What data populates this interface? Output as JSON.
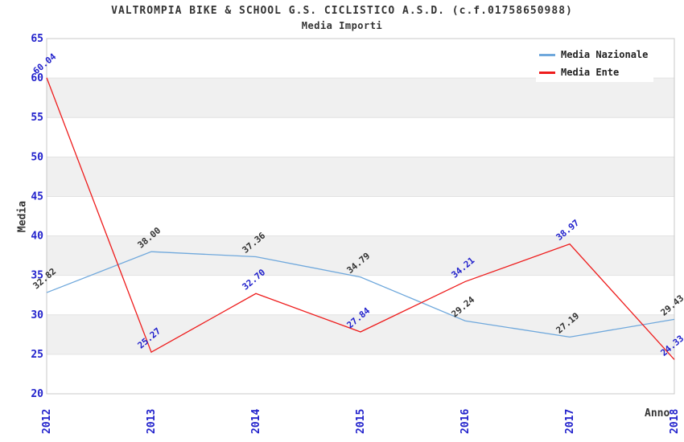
{
  "chart_data": {
    "type": "line",
    "title": "VALTROMPIA BIKE & SCHOOL G.S. CICLISTICO A.S.D. (c.f.01758650988)",
    "subtitle": "Media Importi",
    "xlabel": "Anno",
    "ylabel": "Media",
    "x": [
      "2012",
      "2013",
      "2014",
      "2015",
      "2016",
      "2017",
      "2018"
    ],
    "series": [
      {
        "name": "Media Nazionale",
        "color": "#6fa8dc",
        "label_color": "#333333",
        "values": [
          32.82,
          38.0,
          37.36,
          34.79,
          29.24,
          27.19,
          29.43
        ]
      },
      {
        "name": "Media Ente",
        "color": "#ee1c1c",
        "label_color": "#2222cc",
        "values": [
          60.04,
          25.27,
          32.7,
          27.84,
          34.21,
          38.97,
          24.33
        ]
      }
    ],
    "ylim": [
      20,
      65
    ],
    "ytick_step": 5,
    "yticks": [
      20,
      25,
      30,
      35,
      40,
      45,
      50,
      55,
      60,
      65
    ],
    "grid": "alternating-horizontal-bands",
    "band_color": "#f0f0f0",
    "gridline_color": "#e2e2e2",
    "plot_border_color": "#c8c8c8",
    "tick_label_color": "#2222cc",
    "text_color": "#333333",
    "legend_position": "top-right",
    "point_label_format": "2-decimals"
  }
}
